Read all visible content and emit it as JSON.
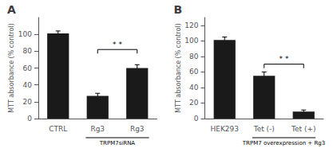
{
  "chart_data": [
    {
      "type": "bar",
      "title": "A",
      "categories": [
        "CTRL",
        "Rg3",
        "Rg3"
      ],
      "values": [
        101,
        27,
        60
      ],
      "errors": [
        3,
        3,
        4
      ],
      "color": "#1a1a1a",
      "y_label": "MTT absorbance (% control)",
      "ylim": [
        0,
        120
      ],
      "yticks": [
        0,
        20,
        40,
        60,
        80,
        100
      ],
      "grid": false,
      "annotations": [
        {
          "text": "* *",
          "y": 82,
          "x": [
            1,
            2
          ]
        },
        {
          "text": "TRPM7siRNA",
          "x": [
            1,
            2
          ]
        }
      ]
    },
    {
      "type": "bar",
      "title": "B",
      "categories": [
        "HEK293",
        "Tet (-)",
        "Tet (+)"
      ],
      "values": [
        101,
        55,
        9
      ],
      "errors": [
        4,
        5,
        2
      ],
      "color": "#1a1a1a",
      "y_label": "MTT absorbance (% control)",
      "ylim": [
        0,
        130
      ],
      "yticks": [
        0,
        20,
        40,
        60,
        80,
        100,
        120
      ],
      "grid": false,
      "annotations": [
        {
          "text": "* *",
          "y": 70,
          "x": [
            1,
            2
          ]
        },
        {
          "text": "TRPM7 overexpression + Rg3",
          "x": [
            1,
            2
          ]
        }
      ]
    }
  ]
}
